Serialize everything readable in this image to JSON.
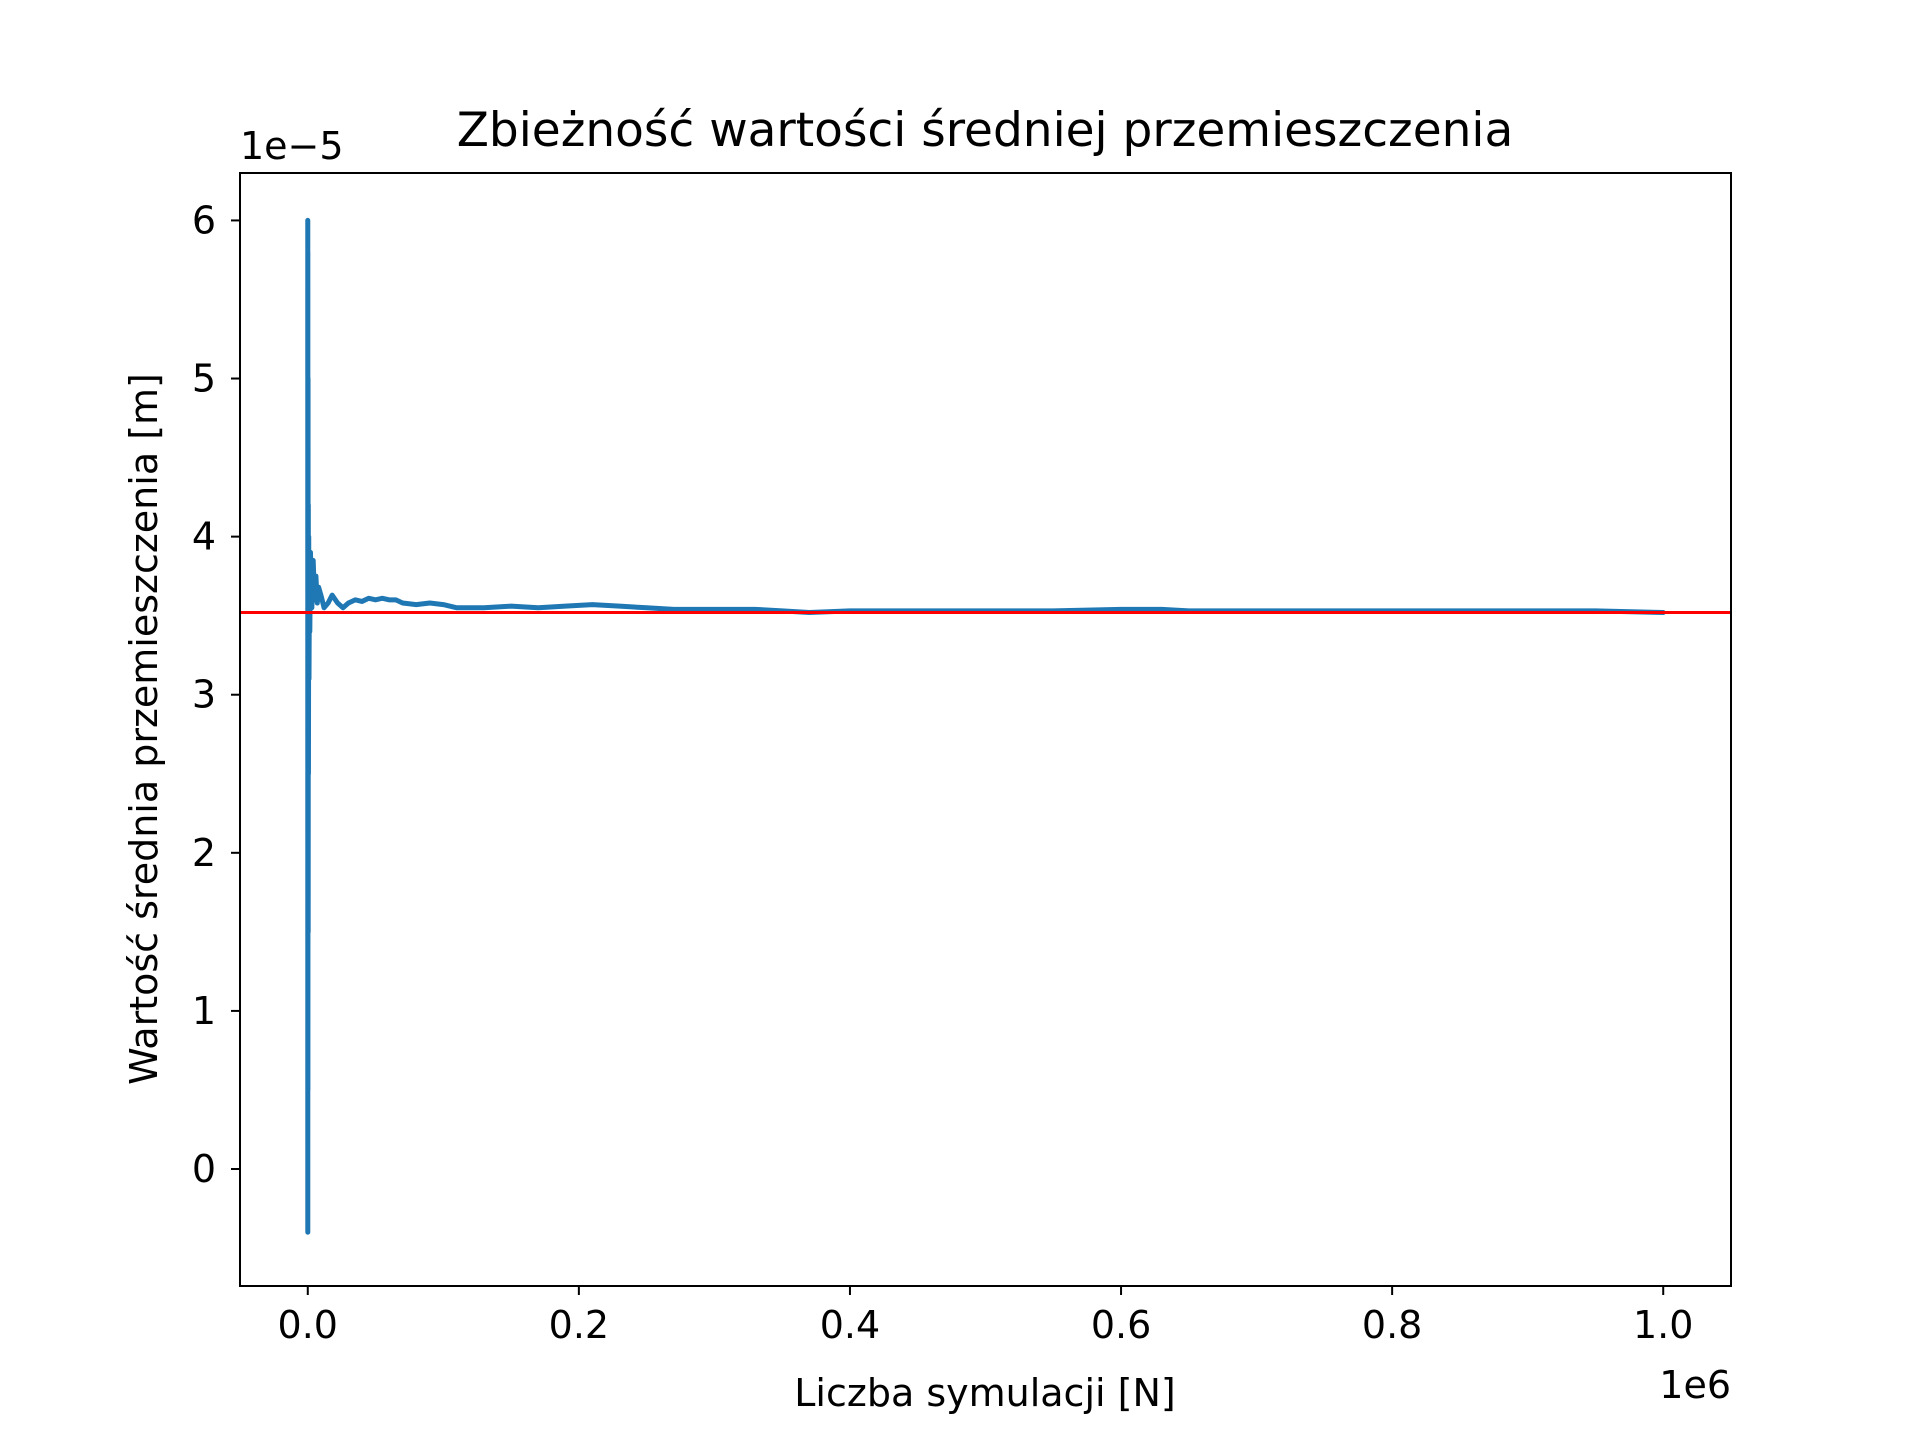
{
  "chart_data": {
    "type": "line",
    "title": "Zbieżność wartości średniej przemieszczenia",
    "xlabel": "Liczba symulacji [N]",
    "ylabel": "Wartość średnia przemieszczenia [m]",
    "x_offset_label": "1e6",
    "y_offset_label": "1e−5",
    "xlim": [
      -50000,
      1050000
    ],
    "ylim": [
      -7.4e-06,
      6.3e-05
    ],
    "x_ticks": [
      0,
      200000,
      400000,
      600000,
      800000,
      1000000
    ],
    "x_tick_labels": [
      "0.0",
      "0.2",
      "0.4",
      "0.6",
      "0.8",
      "1.0"
    ],
    "y_ticks": [
      0,
      1e-05,
      2e-05,
      3e-05,
      4e-05,
      5e-05,
      6e-05
    ],
    "y_tick_labels": [
      "0",
      "1",
      "2",
      "3",
      "4",
      "5",
      "6"
    ],
    "grid": false,
    "colors": {
      "series": "#1f77b4",
      "reference": "#ff0000"
    },
    "series": [
      {
        "x": [
          1,
          20,
          50,
          100,
          200,
          300,
          400,
          500,
          700,
          900,
          1200,
          1500,
          2000,
          2500,
          3000,
          4000,
          5000,
          6000,
          7000,
          8000,
          10000,
          12000,
          15000,
          18000,
          22000,
          26000,
          30000,
          35000,
          40000,
          45000,
          50000,
          55000,
          60000,
          65000,
          70000,
          80000,
          90000,
          100000,
          110000,
          120000,
          130000,
          150000,
          170000,
          190000,
          210000,
          230000,
          250000,
          270000,
          290000,
          310000,
          330000,
          350000,
          370000,
          400000,
          450000,
          500000,
          550000,
          600000,
          630000,
          650000,
          700000,
          750000,
          800000,
          850000,
          900000,
          950000,
          1000000
        ],
        "y": [
          6e-05,
          -4e-06,
          5.8e-05,
          5e-06,
          5e-05,
          1.5e-05,
          4.2e-05,
          2.5e-05,
          4e-05,
          3.1e-05,
          3.7e-05,
          3.4e-05,
          3.9e-05,
          3.7e-05,
          3.55e-05,
          3.85e-05,
          3.6e-05,
          3.75e-05,
          3.58e-05,
          3.68e-05,
          3.62e-05,
          3.55e-05,
          3.58e-05,
          3.63e-05,
          3.58e-05,
          3.55e-05,
          3.58e-05,
          3.6e-05,
          3.59e-05,
          3.61e-05,
          3.6e-05,
          3.61e-05,
          3.6e-05,
          3.6e-05,
          3.58e-05,
          3.57e-05,
          3.58e-05,
          3.57e-05,
          3.55e-05,
          3.55e-05,
          3.55e-05,
          3.56e-05,
          3.55e-05,
          3.56e-05,
          3.57e-05,
          3.56e-05,
          3.55e-05,
          3.54e-05,
          3.54e-05,
          3.54e-05,
          3.54e-05,
          3.53e-05,
          3.52e-05,
          3.53e-05,
          3.53e-05,
          3.53e-05,
          3.53e-05,
          3.54e-05,
          3.54e-05,
          3.53e-05,
          3.53e-05,
          3.53e-05,
          3.53e-05,
          3.53e-05,
          3.53e-05,
          3.53e-05,
          3.52e-05
        ]
      }
    ],
    "reference_line": {
      "y": 3.52e-05
    }
  }
}
